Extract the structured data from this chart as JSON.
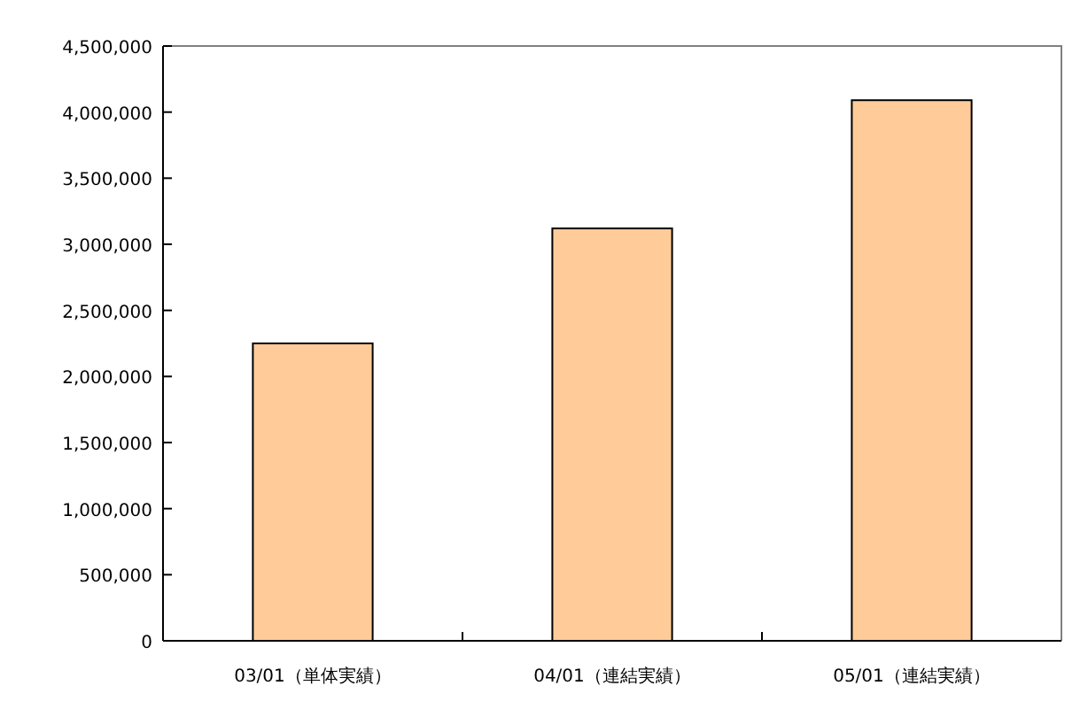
{
  "chart_data": {
    "type": "bar",
    "categories": [
      "03/01（単体実績）",
      "04/01（連結実績）",
      "05/01（連結実績）"
    ],
    "values": [
      2250000,
      3120000,
      4090000
    ],
    "color": "#ffcc99",
    "ylim": [
      0,
      4500000
    ],
    "yticks": [
      {
        "value": 0,
        "label": "0"
      },
      {
        "value": 500000,
        "label": "500,000"
      },
      {
        "value": 1000000,
        "label": "1,000,000"
      },
      {
        "value": 1500000,
        "label": "1,500,000"
      },
      {
        "value": 2000000,
        "label": "2,000,000"
      },
      {
        "value": 2500000,
        "label": "2,500,000"
      },
      {
        "value": 3000000,
        "label": "3,000,000"
      },
      {
        "value": 3500000,
        "label": "3,500,000"
      },
      {
        "value": 4000000,
        "label": "4,000,000"
      },
      {
        "value": 4500000,
        "label": "4,500,000"
      }
    ],
    "grid": false
  }
}
